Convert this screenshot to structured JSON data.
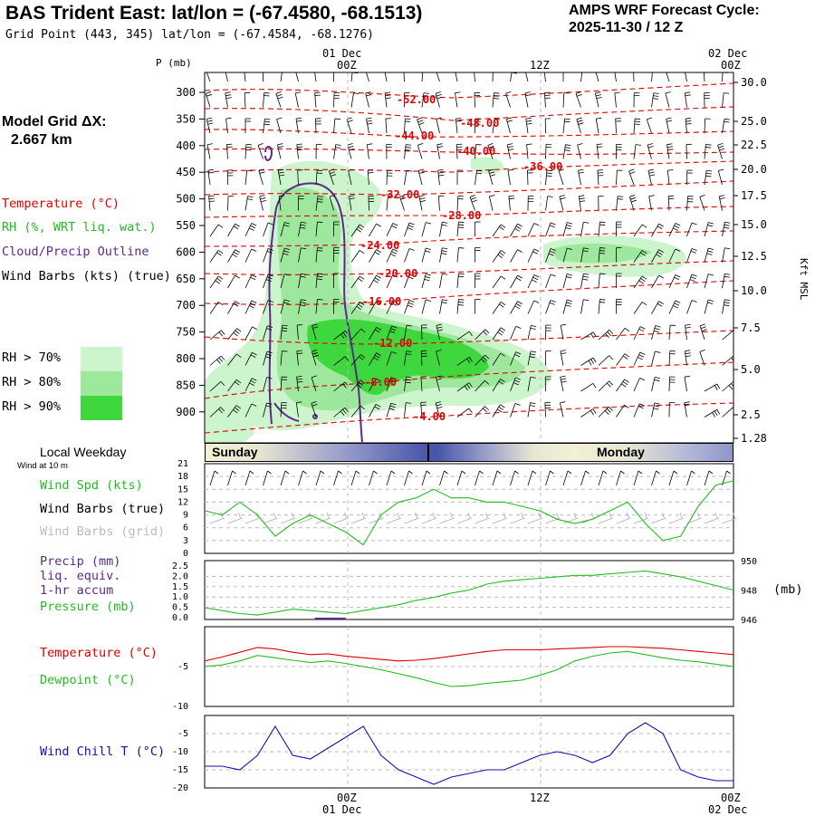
{
  "header": {
    "title": "BAS Trident East:  lat/lon = (-67.4580, -68.1513)",
    "grid_point": "Grid Point (443, 345) lat/lon = (-67.4584, -68.1276)",
    "cycle_label": "AMPS WRF Forecast Cycle:",
    "cycle_value": "2025-11-30 / 12  Z"
  },
  "model_grid": {
    "label": "Model Grid ΔX:",
    "value": "2.667 km"
  },
  "legend": {
    "temperature": "Temperature (°C)",
    "rh": "RH (%, WRT liq. wat.)",
    "cloud": "Cloud/Precip Outline",
    "wind": "Wind Barbs (kts) (true)",
    "rh70": "RH > 70%",
    "rh80": "RH > 80%",
    "rh90": "RH > 90%"
  },
  "colors": {
    "temperature": "#e00000",
    "rh70": "#cdf5cd",
    "rh80": "#9ee89e",
    "rh90": "#3ed83e",
    "cloud": "#5a2a8a",
    "wind_spd": "#22bb22",
    "pressure": "#22bb22",
    "dewpoint": "#22bb22",
    "wind_chill": "#1010b0",
    "precip": "#5a2a8a",
    "grid_barbs": "#aaaaaa"
  },
  "time_axis": {
    "top_labels": [
      {
        "date": "01 Dec",
        "time": "00Z"
      },
      {
        "date": "",
        "time": "12Z"
      },
      {
        "date": "02 Dec",
        "time": "00Z"
      }
    ],
    "bottom_labels": [
      {
        "time": "00Z",
        "date": "01 Dec"
      },
      {
        "time": "12Z",
        "date": ""
      },
      {
        "time": "00Z",
        "date": "02 Dec"
      }
    ]
  },
  "weekday_bar": {
    "label": "Local Weekday",
    "wind_at": "Wind at 10 m",
    "days": [
      "Sunday",
      "Monday"
    ]
  },
  "panel_labels": {
    "wind_spd": "Wind Spd (kts)",
    "wind_barbs_true": "Wind Barbs (true)",
    "wind_barbs_grid": "Wind Barbs (grid)",
    "precip": "Precip (mm)",
    "liq": "liq. equiv.",
    "accum": "1-hr accum",
    "pressure": "Pressure (mb)",
    "pressure_unit": "(mb)",
    "temperature": "Temperature (°C)",
    "dewpoint": "Dewpoint (°C)",
    "wind_chill": "Wind Chill T (°C)"
  },
  "chart_data": [
    {
      "type": "heatmap",
      "title": "Vertical cross-section (time-height)",
      "y_left_label": "P (mb)",
      "y_left_ticks": [
        "300",
        "350",
        "400",
        "450",
        "500",
        "550",
        "600",
        "650",
        "700",
        "750",
        "800",
        "850",
        "900"
      ],
      "y_right_label": "Kft MSL",
      "y_right_ticks": [
        "30.0",
        "25.0",
        "22.5",
        "20.0",
        "17.5",
        "15.0",
        "12.5",
        "10.0",
        "7.5",
        "5.0",
        "2.5",
        "1.28"
      ],
      "temperature_contours": [
        {
          "label": "-52.00",
          "value": -52
        },
        {
          "label": "-48.00",
          "value": -48
        },
        {
          "label": "-44.00",
          "value": -44
        },
        {
          "label": "-40.00",
          "value": -40
        },
        {
          "label": "-36.00",
          "value": -36
        },
        {
          "label": "-32.00",
          "value": -32
        },
        {
          "label": "-28.00",
          "value": -28
        },
        {
          "label": "-24.00",
          "value": -24
        },
        {
          "label": "-20.00",
          "value": -20
        },
        {
          "label": "-16.00",
          "value": -16
        },
        {
          "label": "-12.00",
          "value": -12
        },
        {
          "label": "-8.00",
          "value": -8
        },
        {
          "label": "-4.00",
          "value": -4
        }
      ]
    },
    {
      "type": "line",
      "title": "Wind Spd (kts)",
      "y_ticks": [
        "0",
        "3",
        "6",
        "9",
        "12",
        "15",
        "18",
        "21"
      ],
      "ylim": [
        0,
        21
      ],
      "x_hours": [
        0,
        2,
        4,
        6,
        8,
        10,
        12,
        14,
        16,
        18,
        20,
        22,
        24,
        26,
        28,
        30,
        32,
        34,
        36,
        38,
        40,
        42,
        44,
        46,
        48,
        50,
        52,
        54,
        56,
        58,
        60
      ],
      "values": [
        10,
        9,
        12,
        9,
        4,
        7,
        9,
        7,
        5,
        2,
        9,
        12,
        13,
        15,
        13,
        13,
        12,
        12,
        11,
        10,
        8,
        7,
        8,
        10,
        12,
        7,
        3,
        4,
        11,
        16,
        17
      ]
    },
    {
      "type": "line",
      "title": "Precip / Pressure",
      "precip_ticks": [
        "0.0",
        "0.5",
        "1.0",
        "1.5",
        "2.0",
        "2.5"
      ],
      "pressure_ticks": [
        "946",
        "948",
        "950"
      ],
      "pressure_ylim": [
        946,
        950
      ],
      "x_hours": [
        0,
        2,
        4,
        6,
        8,
        10,
        12,
        14,
        16,
        18,
        20,
        22,
        24,
        26,
        28,
        30,
        32,
        34,
        36,
        38,
        40,
        42,
        44,
        46,
        48,
        50,
        52,
        54,
        56,
        58,
        60
      ],
      "pressure": [
        946.8,
        946.6,
        946.4,
        946.3,
        946.5,
        946.7,
        946.6,
        946.5,
        946.4,
        946.6,
        946.8,
        947.0,
        947.3,
        947.5,
        947.8,
        948.0,
        948.4,
        948.6,
        948.7,
        948.8,
        948.9,
        949.0,
        949.0,
        949.1,
        949.2,
        949.3,
        949.1,
        948.9,
        948.6,
        948.3,
        948.0
      ],
      "precip": [
        0,
        0,
        0,
        0,
        0,
        0,
        0,
        0,
        0,
        0,
        0,
        0,
        0,
        0,
        0,
        0,
        0,
        0,
        0,
        0,
        0,
        0,
        0,
        0,
        0,
        0,
        0,
        0,
        0,
        0,
        0
      ]
    },
    {
      "type": "line",
      "title": "Temperature / Dewpoint",
      "y_ticks": [
        "-5",
        "-10"
      ],
      "ylim": [
        -10,
        0
      ],
      "x_hours": [
        0,
        2,
        4,
        6,
        8,
        10,
        12,
        14,
        16,
        18,
        20,
        22,
        24,
        26,
        28,
        30,
        32,
        34,
        36,
        38,
        40,
        42,
        44,
        46,
        48,
        50,
        52,
        54,
        56,
        58,
        60
      ],
      "series": [
        {
          "name": "Temperature",
          "values": [
            -4.3,
            -3.8,
            -3.2,
            -2.6,
            -2.8,
            -3.2,
            -3.5,
            -3.4,
            -3.7,
            -3.9,
            -4.1,
            -4.3,
            -4.2,
            -4.0,
            -3.7,
            -3.4,
            -3.1,
            -2.9,
            -2.9,
            -2.9,
            -2.8,
            -2.7,
            -2.6,
            -2.5,
            -2.5,
            -2.6,
            -2.7,
            -2.9,
            -3.1,
            -3.3,
            -3.5
          ]
        },
        {
          "name": "Dewpoint",
          "values": [
            -5.0,
            -4.8,
            -4.3,
            -3.6,
            -3.9,
            -4.2,
            -4.5,
            -4.3,
            -4.6,
            -5.0,
            -5.4,
            -5.9,
            -6.4,
            -7.0,
            -7.5,
            -7.4,
            -7.1,
            -6.9,
            -6.7,
            -6.1,
            -5.4,
            -4.3,
            -3.7,
            -3.3,
            -3.1,
            -3.5,
            -3.9,
            -4.2,
            -4.4,
            -4.7,
            -5.0
          ]
        }
      ]
    },
    {
      "type": "line",
      "title": "Wind Chill T (°C)",
      "y_ticks": [
        "-5",
        "-10",
        "-15",
        "-20"
      ],
      "ylim": [
        -20,
        0
      ],
      "x_hours": [
        0,
        2,
        4,
        6,
        8,
        10,
        12,
        14,
        16,
        18,
        20,
        22,
        24,
        26,
        28,
        30,
        32,
        34,
        36,
        38,
        40,
        42,
        44,
        46,
        48,
        50,
        52,
        54,
        56,
        58,
        60
      ],
      "values": [
        -14,
        -14,
        -15,
        -11,
        -3,
        -11,
        -12,
        -9,
        -6,
        -3,
        -11,
        -15,
        -17,
        -19,
        -17,
        -16,
        -15,
        -15,
        -13,
        -11,
        -10,
        -11,
        -13,
        -11,
        -5,
        -2,
        -5,
        -15,
        -17,
        -18,
        -18
      ]
    }
  ]
}
